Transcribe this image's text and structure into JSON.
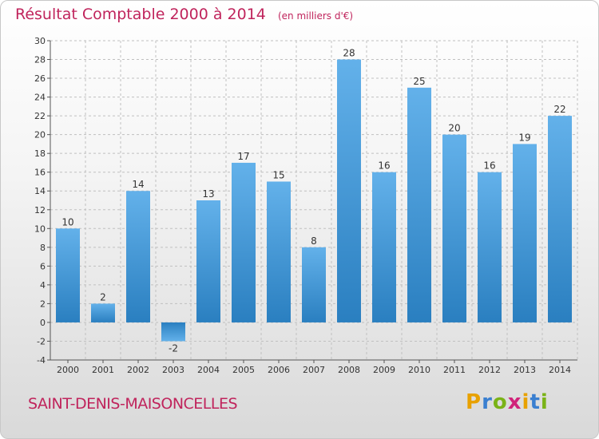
{
  "title": {
    "main": "Résultat Comptable 2000 à 2014",
    "sub": "(en milliers d'€)"
  },
  "place": "SAINT-DENIS-MAISONCELLES",
  "logo": {
    "letters": [
      "P",
      "r",
      "o",
      "x",
      "i",
      "t",
      "i"
    ],
    "colors": [
      "#e8a100",
      "#3a7fd0",
      "#7ab317",
      "#d0237a",
      "#e8a100",
      "#3a7fd0",
      "#7ab317"
    ]
  },
  "colors": {
    "title": "#c0245c",
    "bar_light": "#63b1ea",
    "bar_dark": "#2a7fc0",
    "grid": "#c0c0c0"
  },
  "chart_data": {
    "type": "bar",
    "title": "Résultat Comptable 2000 à 2014",
    "subtitle": "(en milliers d'€)",
    "xlabel": "",
    "ylabel": "",
    "categories": [
      "2000",
      "2001",
      "2002",
      "2003",
      "2004",
      "2005",
      "2006",
      "2007",
      "2008",
      "2009",
      "2010",
      "2011",
      "2012",
      "2013",
      "2014"
    ],
    "values": [
      10,
      2,
      14,
      -2,
      13,
      17,
      15,
      8,
      28,
      16,
      25,
      20,
      16,
      19,
      22
    ],
    "ylim": [
      -4,
      30
    ],
    "yticks": [
      -4,
      -2,
      0,
      2,
      4,
      6,
      8,
      10,
      12,
      14,
      16,
      18,
      20,
      22,
      24,
      26,
      28,
      30
    ],
    "grid": true,
    "legend": "none"
  }
}
